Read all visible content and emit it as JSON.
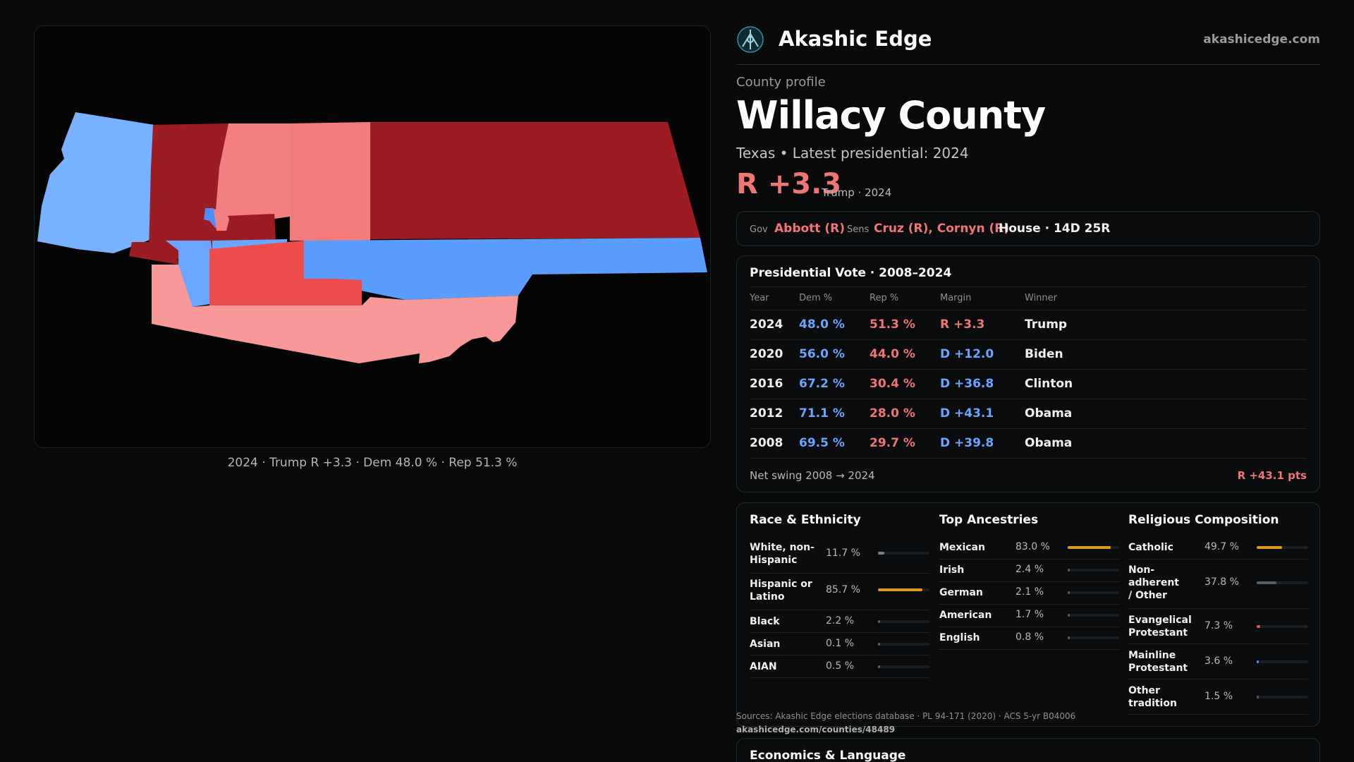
{
  "brand": {
    "name": "Akashic Edge",
    "url": "akashicedge.com",
    "logo_icon": "compass-star-icon"
  },
  "profile": {
    "eyebrow": "County profile",
    "title": "Willacy County",
    "subline": "Texas • Latest presidential: 2024",
    "margin": "R +3.3",
    "margin_note": "Trump · 2024"
  },
  "map": {
    "caption": "2024 · Trump  R +3.3 · Dem 48.0 % · Rep 51.3 %"
  },
  "officials": {
    "gov_label": "Gov",
    "gov": "Abbott (R)",
    "sens_label": "Sens",
    "sens": "Cruz (R), Cornyn (R)",
    "house": "House · 14D 25R"
  },
  "presidential": {
    "title": "Presidential Vote · 2008–2024",
    "headers": [
      "Year",
      "Dem %",
      "Rep %",
      "Margin",
      "Winner"
    ],
    "rows": [
      {
        "year": "2024",
        "dem": "48.0 %",
        "rep": "51.3 %",
        "margin": "R +3.3",
        "winner": "Trump"
      },
      {
        "year": "2020",
        "dem": "56.0 %",
        "rep": "44.0 %",
        "margin": "D +12.0",
        "winner": "Biden"
      },
      {
        "year": "2016",
        "dem": "67.2 %",
        "rep": "30.4 %",
        "margin": "D +36.8",
        "winner": "Clinton"
      },
      {
        "year": "2012",
        "dem": "71.1 %",
        "rep": "28.0 %",
        "margin": "D +43.1",
        "winner": "Obama"
      },
      {
        "year": "2008",
        "dem": "69.5 %",
        "rep": "29.7 %",
        "margin": "D +39.8",
        "winner": "Obama"
      }
    ],
    "swing_label": "Net swing 2008 → 2024",
    "swing_value": "R +43.1 pts"
  },
  "race": {
    "title": "Race & Ethnicity",
    "items": [
      {
        "label": "White, non-Hispanic",
        "pct": "11.7 %",
        "share": 0.117
      },
      {
        "label": "Hispanic or Latino",
        "pct": "85.7 %",
        "share": 0.857
      },
      {
        "label": "Black",
        "pct": "2.2 %",
        "share": 0.022
      },
      {
        "label": "Asian",
        "pct": "0.1 %",
        "share": 0.001
      },
      {
        "label": "AIAN",
        "pct": "0.5 %",
        "share": 0.005
      }
    ]
  },
  "ancestry": {
    "title": "Top Ancestries",
    "items": [
      {
        "label": "Mexican",
        "pct": "83.0 %",
        "share": 0.83
      },
      {
        "label": "Irish",
        "pct": "2.4 %",
        "share": 0.024
      },
      {
        "label": "German",
        "pct": "2.1 %",
        "share": 0.021
      },
      {
        "label": "American",
        "pct": "1.7 %",
        "share": 0.017
      },
      {
        "label": "English",
        "pct": "0.8 %",
        "share": 0.008
      }
    ]
  },
  "religion": {
    "title": "Religious Composition",
    "items": [
      {
        "label": "Catholic",
        "pct": "49.7 %",
        "share": 0.497
      },
      {
        "label": "Non-adherent / Other",
        "pct": "37.8 %",
        "share": 0.378
      },
      {
        "label": "Evangelical Protestant",
        "pct": "7.3 %",
        "share": 0.073
      },
      {
        "label": "Mainline Protestant",
        "pct": "3.6 %",
        "share": 0.036
      },
      {
        "label": "Other tradition",
        "pct": "1.5 %",
        "share": 0.015
      }
    ]
  },
  "sources": {
    "text": "Sources: Akashic Edge elections database · PL 94-171 (2020) · ACS 5-yr B04006",
    "url": "akashicedge.com/counties/48489"
  },
  "economics": {
    "title": "Economics & Language"
  },
  "colors": {
    "accent_orange": "#e09a1a",
    "dem_blue": "#6aa6ff",
    "rep_red": "#f07575",
    "bar_gray": "#7a7f86",
    "bar_red": "#e05555",
    "bar_blue": "#4d8dff",
    "bar_dark": "#5a5e63"
  }
}
